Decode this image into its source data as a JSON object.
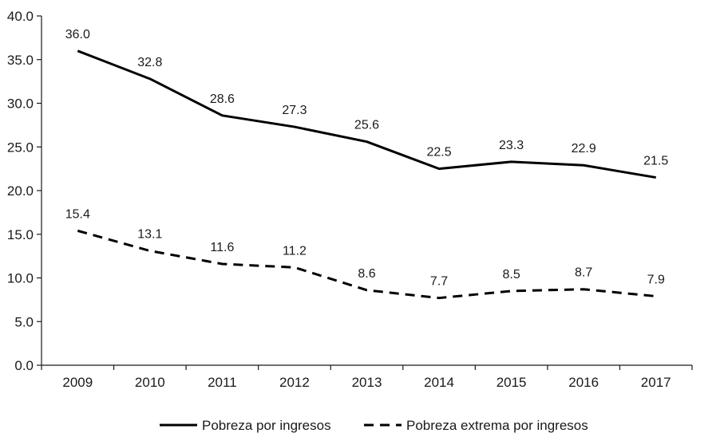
{
  "chart_data": {
    "type": "line",
    "title": "",
    "xlabel": "",
    "ylabel": "",
    "categories": [
      "2009",
      "2010",
      "2011",
      "2012",
      "2013",
      "2014",
      "2015",
      "2016",
      "2017"
    ],
    "ylim": [
      0,
      40
    ],
    "yticks": [
      "0.0",
      "5.0",
      "10.0",
      "15.0",
      "20.0",
      "25.0",
      "30.0",
      "35.0",
      "40.0"
    ],
    "grid": false,
    "legend_position": "bottom",
    "series": [
      {
        "name": "Pobreza por ingresos",
        "style": "solid",
        "color": "#000000",
        "values": [
          36.0,
          32.8,
          28.6,
          27.3,
          25.6,
          22.5,
          23.3,
          22.9,
          21.5
        ],
        "labels": [
          "36.0",
          "32.8",
          "28.6",
          "27.3",
          "25.6",
          "22.5",
          "23.3",
          "22.9",
          "21.5"
        ]
      },
      {
        "name": "Pobreza extrema por ingresos",
        "style": "dashed",
        "color": "#000000",
        "values": [
          15.4,
          13.1,
          11.6,
          11.2,
          8.6,
          7.7,
          8.5,
          8.7,
          7.9
        ],
        "labels": [
          "15.4",
          "13.1",
          "11.6",
          "11.2",
          "8.6",
          "7.7",
          "8.5",
          "8.7",
          "7.9"
        ]
      }
    ]
  }
}
